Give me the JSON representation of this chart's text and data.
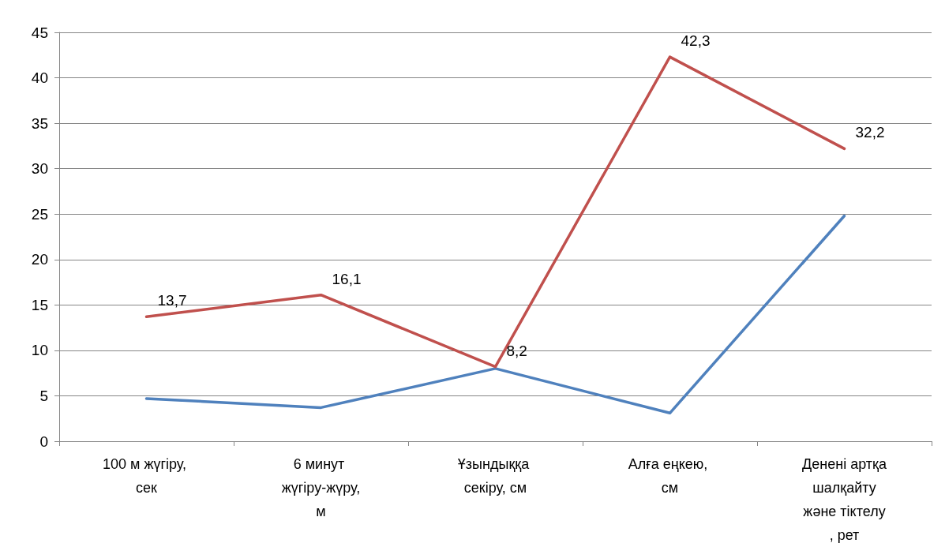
{
  "chart_data": {
    "type": "line",
    "categories": [
      "100 м жүгіру, сек",
      "6 минут жүгіру-жүру,м",
      "Ұзындыққа секіру, см",
      "Алға еңкею, см",
      "Денені артқа шалқайту және тіктелу, рет"
    ],
    "series": [
      {
        "color": "#4f81bd",
        "values": [
          4.7,
          3.7,
          8.0,
          3.1,
          24.8
        ]
      },
      {
        "color": "#c0504d",
        "values": [
          13.7,
          16.1,
          8.2,
          42.3,
          32.2
        ],
        "value_labels": [
          "13,7",
          "16,1",
          "8,2",
          "42,3",
          "32,2"
        ]
      }
    ],
    "ylim": [
      0,
      45
    ],
    "yticks": [
      0,
      5,
      10,
      15,
      20,
      25,
      30,
      35,
      40,
      45
    ],
    "grid": "y",
    "marker": "none",
    "line_style": "solid"
  }
}
